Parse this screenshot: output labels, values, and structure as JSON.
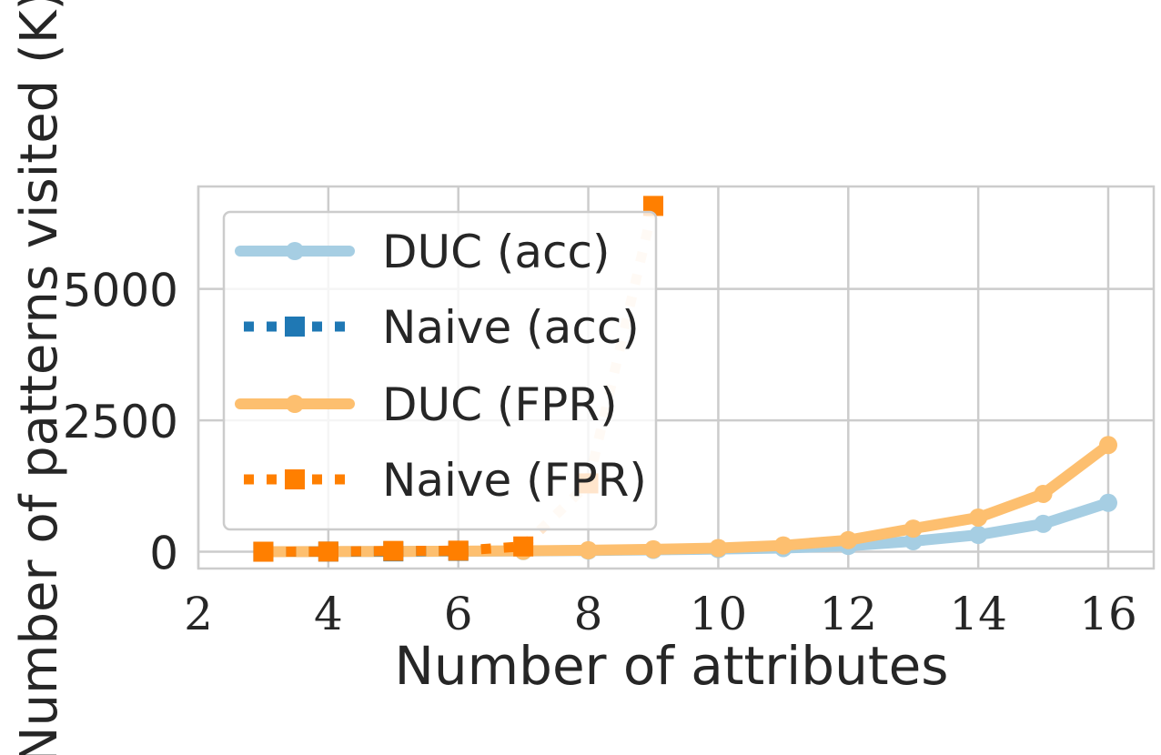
{
  "chart_data": {
    "type": "line",
    "xlabel": "Number of attributes",
    "ylabel": "Number of patterns visited (K)",
    "xlim": [
      2,
      16.7
    ],
    "ylim": [
      -320,
      6950
    ],
    "x_ticks": [
      "2",
      "4",
      "6",
      "8",
      "10",
      "12",
      "14",
      "16"
    ],
    "y_ticks": [
      "0",
      "2500",
      "5000"
    ],
    "grid": true,
    "legend_position": "upper-left",
    "series": [
      {
        "name": "DUC (acc)",
        "style": "solid",
        "marker": "circle",
        "color": "#a6cee3",
        "x": [
          3,
          4,
          5,
          6,
          7,
          8,
          9,
          10,
          11,
          12,
          13,
          14,
          15,
          16
        ],
        "y": [
          0,
          2,
          4,
          8,
          14,
          22,
          34,
          50,
          70,
          110,
          200,
          320,
          530,
          930
        ]
      },
      {
        "name": "Naive (acc)",
        "style": "dotted",
        "marker": "square",
        "color": "#1f78b4",
        "x": [
          3,
          4,
          5,
          6
        ],
        "y": [
          0,
          2,
          6,
          15
        ]
      },
      {
        "name": "DUC (FPR)",
        "style": "solid",
        "marker": "circle",
        "color": "#fdbf6f",
        "x": [
          3,
          4,
          5,
          6,
          7,
          8,
          9,
          10,
          11,
          12,
          13,
          14,
          15,
          16
        ],
        "y": [
          0,
          3,
          5,
          10,
          18,
          28,
          45,
          70,
          120,
          220,
          440,
          650,
          1100,
          2030
        ]
      },
      {
        "name": "Naive (FPR)",
        "style": "dotted",
        "marker": "square",
        "color": "#ff7f00",
        "x": [
          3,
          4,
          5,
          6,
          7,
          8,
          9
        ],
        "y": [
          0,
          3,
          15,
          20,
          100,
          1300,
          6580
        ]
      }
    ]
  }
}
